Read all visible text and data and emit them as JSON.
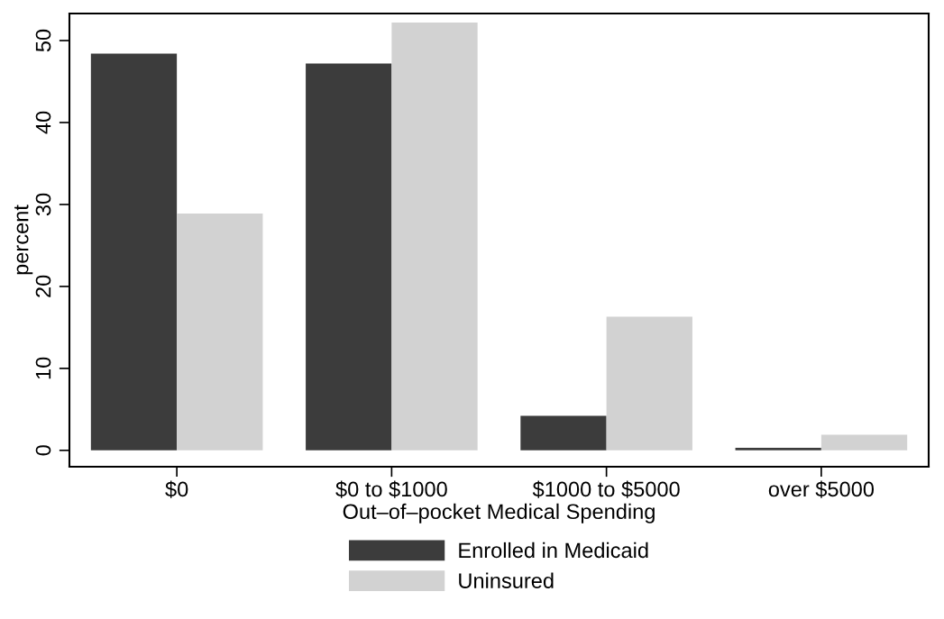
{
  "chart_data": {
    "type": "bar",
    "xlabel": "Out–of–pocket Medical Spending",
    "ylabel": "percent",
    "categories": [
      "$0",
      "$0 to $1000",
      "$1000 to $5000",
      "over $5000"
    ],
    "series": [
      {
        "name": "Enrolled in Medicaid",
        "color": "#3c3c3c",
        "values": [
          48.4,
          47.2,
          4.2,
          0.3
        ]
      },
      {
        "name": "Uninsured",
        "color": "#d2d2d2",
        "values": [
          28.9,
          52.2,
          16.3,
          1.9
        ]
      }
    ],
    "ylim": [
      -2,
      53.3
    ],
    "yticks": [
      0,
      10,
      20,
      30,
      40,
      50
    ],
    "grid": false,
    "legend": "bottom"
  }
}
